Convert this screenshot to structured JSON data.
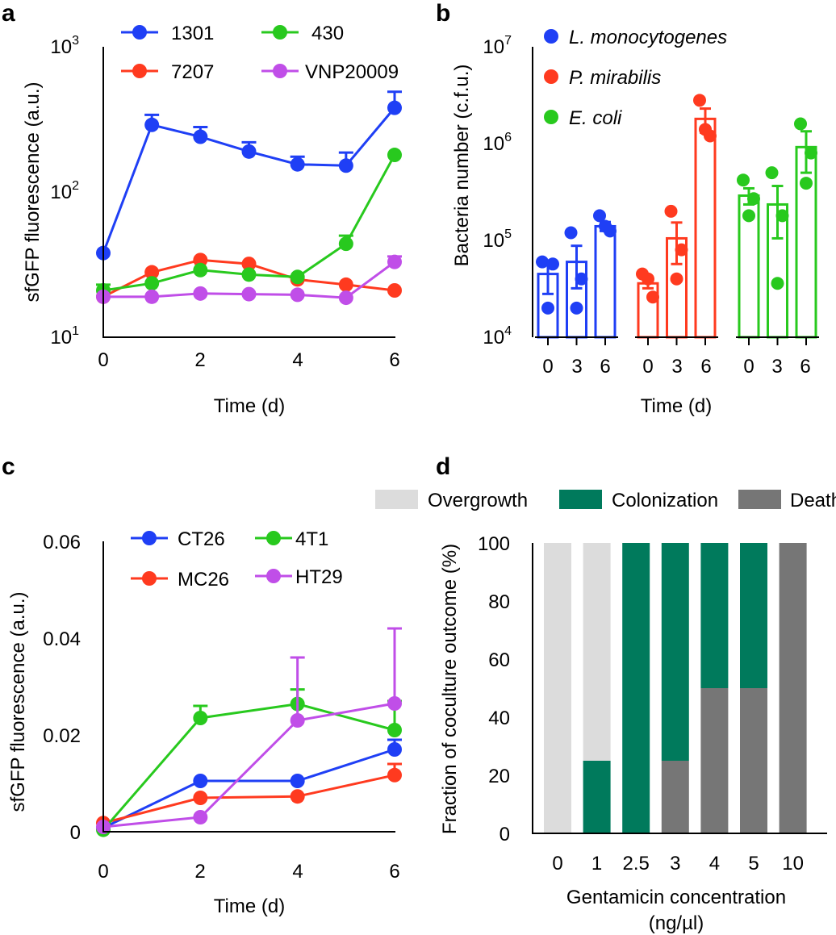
{
  "panels": {
    "a": {
      "label": "a",
      "ylabel": "sfGFP fluorescence (a.u.)",
      "xlabel": "Time (d)",
      "xticks": [
        "0",
        "2",
        "4",
        "6"
      ],
      "yticks": [
        {
          "base": "10",
          "exp": "1"
        },
        {
          "base": "10",
          "exp": "2"
        },
        {
          "base": "10",
          "exp": "3"
        }
      ]
    },
    "b": {
      "label": "b",
      "ylabel": "Bacteria number (c.f.u.)",
      "xlabel": "Time (d)",
      "xticks": [
        "0",
        "3",
        "6"
      ],
      "yticks": [
        {
          "base": "10",
          "exp": "4"
        },
        {
          "base": "10",
          "exp": "5"
        },
        {
          "base": "10",
          "exp": "6"
        },
        {
          "base": "10",
          "exp": "7"
        }
      ]
    },
    "c": {
      "label": "c",
      "ylabel": "sfGFP fluorescence (a.u.)",
      "xlabel": "Time (d)",
      "xticks": [
        "0",
        "2",
        "4",
        "6"
      ],
      "yticks": [
        "0",
        "0.02",
        "0.04",
        "0.06"
      ]
    },
    "d": {
      "label": "d",
      "ylabel": "Fraction of coculture outcome (%)",
      "xlabel_line1": "Gentamicin concentration",
      "xlabel_line2": "(ng/µl)",
      "yticks": [
        "0",
        "20",
        "40",
        "60",
        "80",
        "100"
      ]
    }
  },
  "chart_data": [
    {
      "panel": "a",
      "type": "line",
      "yscale": "log",
      "ylim": [
        10,
        1000
      ],
      "xlim": [
        0,
        6
      ],
      "x": [
        0,
        1,
        2,
        3,
        4,
        5,
        6
      ],
      "series": [
        {
          "name": "1301",
          "color": "#1f3ff5",
          "values": [
            38,
            290,
            240,
            190,
            155,
            152,
            380
          ],
          "err": [
            0,
            50,
            40,
            30,
            20,
            35,
            110
          ]
        },
        {
          "name": "7207",
          "color": "#ff3a1f",
          "values": [
            19,
            28,
            34,
            32,
            25,
            23,
            21
          ],
          "err": [
            0,
            0,
            0,
            0,
            0,
            0,
            0
          ]
        },
        {
          "name": "430",
          "color": "#28c91e",
          "values": [
            21,
            23.5,
            29,
            27,
            26,
            44,
            180
          ],
          "err": [
            2,
            0,
            0,
            0,
            0,
            6,
            0
          ]
        },
        {
          "name": "VNP20009",
          "color": "#c04ee8",
          "values": [
            19,
            19,
            20,
            19.8,
            19.6,
            18.7,
            33
          ],
          "err": [
            0,
            0,
            0,
            0,
            0,
            0,
            3
          ]
        }
      ]
    },
    {
      "panel": "b",
      "type": "bar",
      "yscale": "log",
      "ylim": [
        10000,
        10000000
      ],
      "categories": [
        "0",
        "3",
        "6"
      ],
      "series": [
        {
          "name": "L. monocytogenes",
          "color": "#1f3ff5",
          "means": [
            45000,
            60000,
            140000
          ],
          "err": [
            17000,
            28000,
            15000
          ],
          "points": [
            [
              60000,
              57000,
              20000
            ],
            [
              120000,
              40000,
              20000
            ],
            [
              180000,
              125000,
              140000
            ]
          ]
        },
        {
          "name": "P. mirabilis",
          "color": "#ff3a1f",
          "means": [
            36000,
            105000,
            1800000
          ],
          "err": [
            4000,
            48000,
            500000
          ],
          "points": [
            [
              45000,
              26000,
              40000
            ],
            [
              200000,
              80000,
              40000
            ],
            [
              2800000,
              1200000,
              1400000
            ]
          ]
        },
        {
          "name": "E. coli",
          "color": "#28c91e",
          "means": [
            290000,
            235000,
            920000
          ],
          "err": [
            55000,
            130000,
            420000
          ],
          "points": [
            [
              420000,
              270000,
              180000
            ],
            [
              500000,
              180000,
              36000
            ],
            [
              1600000,
              800000,
              390000
            ]
          ]
        }
      ]
    },
    {
      "panel": "c",
      "type": "line",
      "ylim": [
        0,
        0.06
      ],
      "xlim": [
        0,
        6
      ],
      "x": [
        0,
        2,
        4,
        6
      ],
      "series": [
        {
          "name": "CT26",
          "color": "#1f3ff5",
          "values": [
            0.0008,
            0.0105,
            0.0105,
            0.017
          ],
          "err": [
            0,
            0,
            0,
            0.002
          ]
        },
        {
          "name": "MC26",
          "color": "#ff3a1f",
          "values": [
            0.0018,
            0.007,
            0.0073,
            0.0117
          ],
          "err": [
            0,
            0,
            0,
            0.0023
          ]
        },
        {
          "name": "4T1",
          "color": "#28c91e",
          "values": [
            0.0004,
            0.0235,
            0.0264,
            0.021
          ],
          "err": [
            0,
            0.0025,
            0.003,
            0.006
          ]
        },
        {
          "name": "HT29",
          "color": "#c04ee8",
          "values": [
            0.001,
            0.003,
            0.023,
            0.0265
          ],
          "err": [
            0,
            0,
            0.013,
            0.0155
          ]
        }
      ]
    },
    {
      "panel": "d",
      "type": "bar",
      "stacked": true,
      "ylim": [
        0,
        100
      ],
      "categories": [
        "0",
        "1",
        "2.5",
        "3",
        "4",
        "5",
        "10"
      ],
      "series": [
        {
          "name": "Death",
          "color": "#767676",
          "values": [
            0,
            0,
            0,
            25,
            50,
            50,
            100
          ]
        },
        {
          "name": "Colonization",
          "color": "#007a5c",
          "values": [
            0,
            25,
            100,
            75,
            50,
            50,
            0
          ]
        },
        {
          "name": "Overgrowth",
          "color": "#dcdcdc",
          "values": [
            100,
            75,
            0,
            0,
            0,
            0,
            0
          ]
        }
      ]
    }
  ]
}
